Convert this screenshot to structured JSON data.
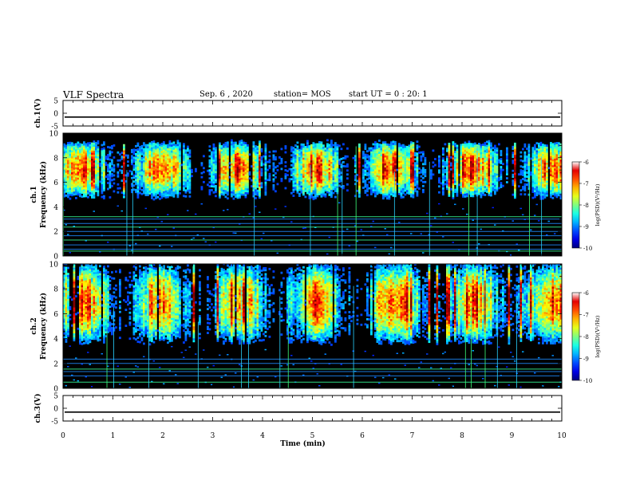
{
  "header": {
    "title": "VLF Spectra",
    "date": "Sep. 6 , 2020",
    "station": "station= MOS",
    "start_ut": "start UT =  0 : 20: 1"
  },
  "chart_data": [
    {
      "type": "line",
      "name": "ch1-voltage",
      "ylabel": "ch.1(V)",
      "yticks": [
        "5",
        "0",
        "-5"
      ],
      "ylim": [
        -5,
        5
      ],
      "xlim": [
        0,
        10
      ],
      "value": -1.5
    },
    {
      "type": "heatmap",
      "name": "ch1-spectrogram",
      "ylabel_line1": "ch.1",
      "ylabel_line2": "Frequency (kHz)",
      "yticks": [
        "0",
        "2",
        "4",
        "6",
        "8",
        "10"
      ],
      "ylim": [
        0,
        10
      ],
      "xlim": [
        0,
        10
      ],
      "band_khz": [
        4.5,
        9.0
      ],
      "peak_khz": 7.0,
      "lines_khz": [
        0.4,
        0.55,
        0.9,
        1.3,
        1.65,
        2.0,
        2.35,
        2.65,
        3.0,
        3.2
      ],
      "colorbar": {
        "label": "log(PSD)(V²/Hz)",
        "ticks": [
          "-6",
          "-7",
          "-8",
          "-9",
          "-10"
        ],
        "range": [
          -10,
          -6
        ]
      }
    },
    {
      "type": "heatmap",
      "name": "ch2-spectrogram",
      "ylabel_line1": "ch.2",
      "ylabel_line2": "Frequency (kHz)",
      "yticks": [
        "0",
        "2",
        "4",
        "6",
        "8",
        "10"
      ],
      "ylim": [
        0,
        10
      ],
      "xlim": [
        0,
        10
      ],
      "band_khz": [
        3.5,
        9.8
      ],
      "peak_khz": 6.8,
      "lines_khz": [
        0.5,
        1.0,
        1.35,
        1.55,
        2.0,
        2.35
      ],
      "colorbar": {
        "label": "log(PSD)(V²/Hz)",
        "ticks": [
          "-6",
          "-7",
          "-8",
          "-9",
          "-10"
        ],
        "range": [
          -10,
          -6
        ]
      }
    },
    {
      "type": "line",
      "name": "ch3-voltage",
      "ylabel": "ch.3(V)",
      "yticks": [
        "5",
        "0",
        "-5"
      ],
      "ylim": [
        -5,
        5
      ],
      "xlim": [
        0,
        10
      ],
      "value": -1.5
    }
  ],
  "x_axis": {
    "label": "Time (min)",
    "ticks": [
      "0",
      "1",
      "2",
      "3",
      "4",
      "5",
      "6",
      "7",
      "8",
      "9",
      "10"
    ],
    "range": [
      0,
      10
    ]
  }
}
